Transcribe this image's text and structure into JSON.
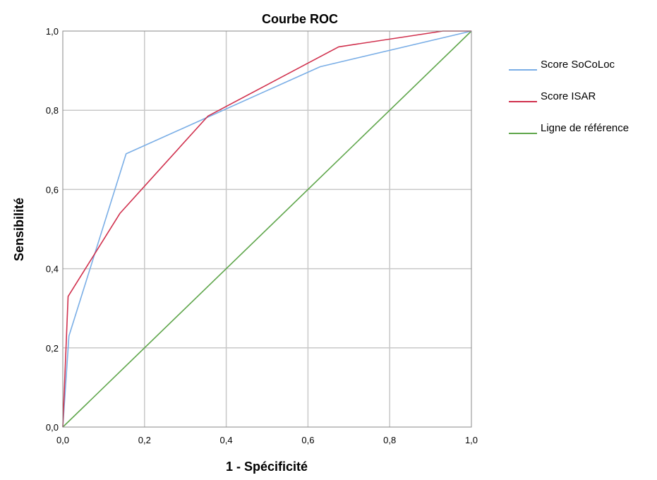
{
  "chart_data": {
    "type": "line",
    "title": "Courbe ROC",
    "xlabel": "1 - Spécificité",
    "ylabel": "Sensibilité",
    "xlim": [
      0,
      1
    ],
    "ylim": [
      0,
      1
    ],
    "xticks": [
      "0,0",
      "0,2",
      "0,4",
      "0,6",
      "0,8",
      "1,0"
    ],
    "yticks": [
      "0,0",
      "0,2",
      "0,4",
      "0,6",
      "0,8",
      "1,0"
    ],
    "grid": true,
    "legend_position": "right",
    "series": [
      {
        "name": "Score SoCoLoc",
        "color": "#7aaee6",
        "points": [
          [
            0,
            0
          ],
          [
            0.015,
            0.23
          ],
          [
            0.155,
            0.69
          ],
          [
            0.36,
            0.785
          ],
          [
            0.63,
            0.91
          ],
          [
            1.0,
            1.0
          ]
        ]
      },
      {
        "name": "Score ISAR",
        "color": "#d0304d",
        "points": [
          [
            0,
            0
          ],
          [
            0.013,
            0.33
          ],
          [
            0.14,
            0.54
          ],
          [
            0.355,
            0.785
          ],
          [
            0.675,
            0.96
          ],
          [
            0.93,
            1.0
          ],
          [
            1.0,
            1.0
          ]
        ]
      },
      {
        "name": "Ligne de référence",
        "color": "#5fa64b",
        "points": [
          [
            0,
            0
          ],
          [
            1.0,
            1.0
          ]
        ]
      }
    ]
  }
}
